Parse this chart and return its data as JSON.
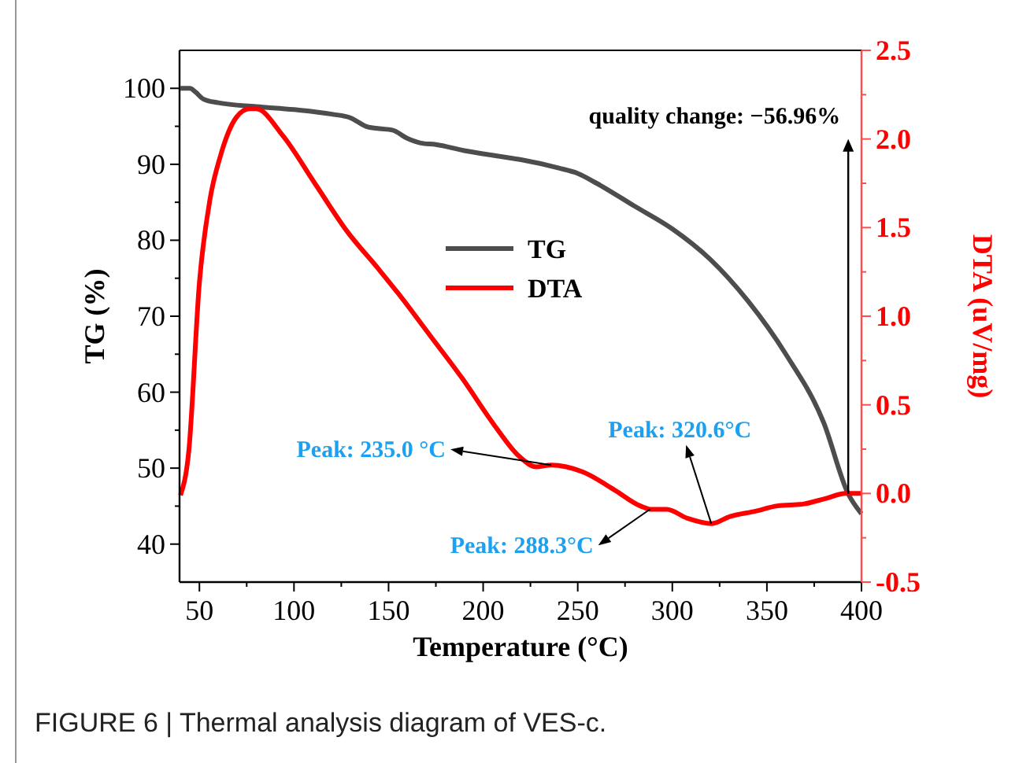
{
  "chart_data": {
    "type": "line",
    "xlabel": "Temperature (°C)",
    "ylabel": "TG (%)",
    "y2label": "DTA (uV/mg)",
    "xlim": [
      39.5,
      400
    ],
    "xticks": [
      50,
      100,
      150,
      200,
      250,
      300,
      350,
      400
    ],
    "ylim": [
      35,
      105
    ],
    "yticks": [
      40,
      50,
      60,
      70,
      80,
      90,
      100
    ],
    "y2lim": [
      -0.5,
      2.5
    ],
    "y2ticks": [
      -0.5,
      {
        "value": 0,
        "label": "0.0"
      },
      0.5,
      {
        "value": 1,
        "label": "1.0"
      },
      1.5,
      {
        "value": 2,
        "label": "2.0"
      },
      2.5
    ],
    "legend": "center",
    "grid": false,
    "marker": "none",
    "line_style": "solid",
    "series": [
      {
        "name": "TG",
        "color": "#4d4d4d",
        "x": [
          40,
          45,
          48,
          52,
          60,
          80,
          100,
          120,
          130,
          138,
          145,
          152,
          160,
          167,
          175,
          190,
          210,
          220,
          240,
          250,
          260,
          280,
          300,
          320,
          340,
          360,
          380,
          393,
          400
        ],
        "values": [
          100,
          100,
          99.5,
          98.6,
          98.1,
          97.6,
          97.2,
          96.6,
          96.1,
          95,
          94.7,
          94.5,
          93.4,
          92.8,
          92.6,
          91.8,
          91,
          90.6,
          89.5,
          88.8,
          87.5,
          84.5,
          81.5,
          77.5,
          72,
          65,
          56,
          46.6,
          44
        ]
      },
      {
        "name": "DTA",
        "color": "#ff0000",
        "axis": "y2",
        "x": [
          40,
          44.4,
          50,
          55.6,
          61,
          69.4,
          76.4,
          80,
          94,
          111,
          128,
          144.4,
          155,
          172,
          188.9,
          205.6,
          219,
          228,
          236,
          244,
          253,
          269.4,
          283,
          289,
          297,
          308,
          320.8,
          330.5,
          344,
          355.5,
          369,
          380.5,
          391.7,
          400
        ],
        "values": [
          -0.01,
          0.24,
          1.19,
          1.66,
          1.9,
          2.12,
          2.17,
          2.17,
          2.02,
          1.75,
          1.48,
          1.27,
          1.13,
          0.89,
          0.65,
          0.39,
          0.21,
          0.15,
          0.16,
          0.15,
          0.12,
          0.02,
          -0.07,
          -0.09,
          -0.09,
          -0.14,
          -0.17,
          -0.13,
          -0.1,
          -0.07,
          -0.06,
          -0.03,
          0.0,
          0.0
        ]
      }
    ],
    "annotations": [
      {
        "text": "quality change: −56.96%",
        "x": 393,
        "y": 46.6
      },
      {
        "text": "Peak: 235.0 °C",
        "x": 236,
        "y": 50.4
      },
      {
        "text": "Peak: 288.3°C",
        "x": 288.3,
        "y": 44.6
      },
      {
        "text": "Peak: 320.6°C",
        "x": 320.6,
        "y": 42.7
      },
      "FIGURE 6 | Thermal analysis diagram of VES-c."
    ]
  }
}
